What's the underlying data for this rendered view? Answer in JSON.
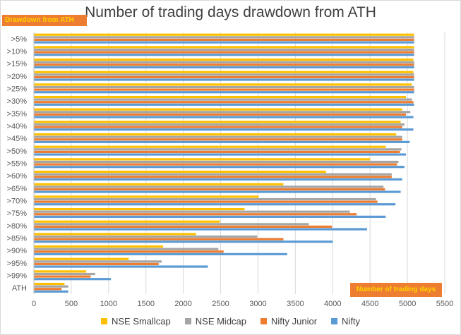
{
  "chart_data": {
    "type": "bar",
    "orientation": "horizontal",
    "title": "Number of trading days drawdown from ATH",
    "ylabel": "Drawdown from ATH",
    "xlabel": "Number of trading days",
    "xlim": [
      0,
      5500
    ],
    "xticks": [
      "0",
      "500",
      "1000",
      "1500",
      "2000",
      "2500",
      "3000",
      "3500",
      "4000",
      "4500",
      "5000",
      "5500"
    ],
    "categories": [
      ">5%",
      ">10%",
      ">15%",
      ">20%",
      ">25%",
      ">30%",
      ">35%",
      ">40%",
      ">45%",
      ">50%",
      ">55%",
      ">60%",
      ">65%",
      ">70%",
      ">75%",
      ">80%",
      ">85%",
      ">90%",
      ">95%",
      ">99%",
      "ATH"
    ],
    "grid": true,
    "legend_position": "bottom",
    "series": [
      {
        "name": "NSE Smallcap",
        "color": "#ffc000",
        "values": [
          5090,
          5090,
          5080,
          5080,
          5060,
          4980,
          4930,
          4910,
          4850,
          4710,
          4500,
          3910,
          3340,
          3010,
          2820,
          2490,
          2170,
          1730,
          1270,
          700,
          410
        ]
      },
      {
        "name": "NSE Midcap",
        "color": "#a5a5a5",
        "values": [
          5090,
          5090,
          5090,
          5090,
          5090,
          5060,
          5040,
          4960,
          4930,
          4920,
          4880,
          4790,
          4680,
          4580,
          4230,
          3680,
          2990,
          2470,
          1710,
          820,
          460
        ]
      },
      {
        "name": "Nifty Junior",
        "color": "#ed7d31",
        "values": [
          5090,
          5090,
          5090,
          5090,
          5090,
          5080,
          4980,
          4930,
          4930,
          4900,
          4860,
          4790,
          4700,
          4600,
          4320,
          3990,
          3340,
          2540,
          1670,
          760,
          370
        ]
      },
      {
        "name": "Nifty",
        "color": "#5b9bd5",
        "values": [
          5090,
          5090,
          5090,
          5090,
          5090,
          5090,
          5080,
          5080,
          5030,
          4980,
          4960,
          4930,
          4910,
          4840,
          4710,
          4460,
          4000,
          3390,
          2330,
          1030,
          460
        ]
      }
    ]
  }
}
